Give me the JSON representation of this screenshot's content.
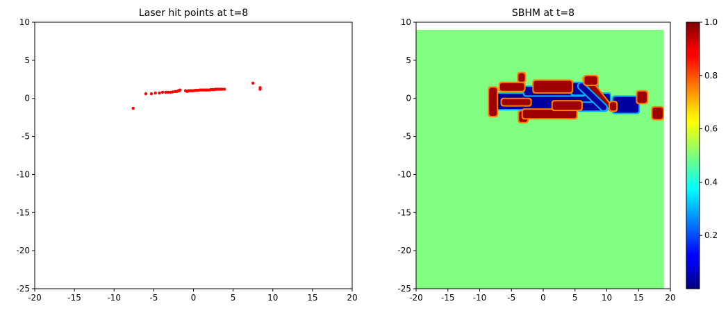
{
  "chart_data": [
    {
      "type": "scatter",
      "title": "Laser hit points at t=8",
      "xlabel": "",
      "ylabel": "",
      "xlim": [
        -20,
        20
      ],
      "ylim": [
        -25,
        10
      ],
      "x_ticks": [
        -20,
        -15,
        -10,
        -5,
        0,
        5,
        10,
        15,
        20
      ],
      "y_ticks": [
        -25,
        -20,
        -15,
        -10,
        -5,
        0,
        5,
        10
      ],
      "grid": false,
      "point_color": "#ff0000",
      "points": [
        [
          -7.6,
          -1.3
        ],
        [
          -6.0,
          0.6
        ],
        [
          -5.3,
          0.6
        ],
        [
          -4.8,
          0.7
        ],
        [
          -4.3,
          0.7
        ],
        [
          -3.9,
          0.8
        ],
        [
          -3.5,
          0.8
        ],
        [
          -3.2,
          0.8
        ],
        [
          -2.9,
          0.8
        ],
        [
          -2.6,
          0.85
        ],
        [
          -2.3,
          0.9
        ],
        [
          -2.1,
          0.9
        ],
        [
          -1.9,
          1.0
        ],
        [
          -1.8,
          1.0
        ],
        [
          -1.7,
          1.1
        ],
        [
          -1.0,
          1.0
        ],
        [
          -0.8,
          0.9
        ],
        [
          -0.6,
          1.0
        ],
        [
          -0.4,
          1.0
        ],
        [
          -0.2,
          1.0
        ],
        [
          0.0,
          1.0
        ],
        [
          0.2,
          1.05
        ],
        [
          0.4,
          1.05
        ],
        [
          0.6,
          1.05
        ],
        [
          0.8,
          1.1
        ],
        [
          1.0,
          1.1
        ],
        [
          1.2,
          1.1
        ],
        [
          1.4,
          1.1
        ],
        [
          1.6,
          1.1
        ],
        [
          1.8,
          1.1
        ],
        [
          2.0,
          1.1
        ],
        [
          2.2,
          1.15
        ],
        [
          2.4,
          1.15
        ],
        [
          2.6,
          1.15
        ],
        [
          2.8,
          1.2
        ],
        [
          3.0,
          1.2
        ],
        [
          3.2,
          1.2
        ],
        [
          3.4,
          1.2
        ],
        [
          3.6,
          1.2
        ],
        [
          3.9,
          1.2
        ],
        [
          7.5,
          2.0
        ],
        [
          8.4,
          1.4
        ],
        [
          8.4,
          1.2
        ]
      ]
    },
    {
      "type": "heatmap",
      "title": "SBHM at t=8",
      "xlabel": "",
      "ylabel": "",
      "xlim": [
        -20,
        20
      ],
      "ylim": [
        -25,
        10
      ],
      "x_ticks": [
        -20,
        -15,
        -10,
        -5,
        0,
        5,
        10,
        15,
        20
      ],
      "y_ticks": [
        -25,
        -20,
        -15,
        -10,
        -5,
        0,
        5,
        10
      ],
      "field_extent": {
        "x": [
          -20,
          19
        ],
        "y": [
          -25,
          9
        ]
      },
      "background_value": 0.5,
      "colormap": "jet",
      "colorbar": {
        "min": 0,
        "max": 1.0,
        "ticks": [
          0.2,
          0.4,
          0.6,
          0.8,
          1.0
        ],
        "tick_labels": [
          "0.2",
          "0.4",
          "0.6",
          "0.8",
          "1.0"
        ]
      },
      "regions": [
        {
          "value": 0.03,
          "x": [
            -8,
            10.5
          ],
          "y": [
            -1.4,
            0.6
          ]
        },
        {
          "value": 0.03,
          "x": [
            -3,
            6.5
          ],
          "y": [
            0.4,
            1.5
          ]
        },
        {
          "value": 0.03,
          "x": [
            4.5,
            8.5
          ],
          "y": [
            0.5,
            2.0
          ]
        },
        {
          "value": 0.03,
          "x": [
            5.5,
            10
          ],
          "y": [
            -1.6,
            -0.6
          ]
        },
        {
          "value": 0.03,
          "x": [
            11,
            15
          ],
          "y": [
            -1.9,
            0.2
          ]
        },
        {
          "value": 0.97,
          "x": [
            -8.5,
            -7.3
          ],
          "y": [
            -2.3,
            1.4
          ]
        },
        {
          "value": 0.97,
          "x": [
            -6.8,
            -3.0
          ],
          "y": [
            1.0,
            2.0
          ]
        },
        {
          "value": 0.97,
          "x": [
            -6.5,
            -2.0
          ],
          "y": [
            -0.9,
            -0.1
          ]
        },
        {
          "value": 0.97,
          "x": [
            -3.8,
            -2.5
          ],
          "y": [
            -3.1,
            -1.7
          ]
        },
        {
          "value": 0.97,
          "x": [
            -3.2,
            5.2
          ],
          "y": [
            -2.6,
            -1.5
          ]
        },
        {
          "value": 0.97,
          "x": [
            -1.5,
            4.5
          ],
          "y": [
            0.8,
            2.3
          ]
        },
        {
          "value": 0.97,
          "x": [
            1.5,
            6.0
          ],
          "y": [
            -1.5,
            -0.4
          ]
        },
        {
          "value": 0.97,
          "x": [
            6.5,
            8.5
          ],
          "y": [
            1.8,
            2.9
          ]
        },
        {
          "value": 0.97,
          "x": [
            10.5,
            11.5
          ],
          "y": [
            -1.6,
            -0.5
          ]
        },
        {
          "value": 0.97,
          "x": [
            14.8,
            16.3
          ],
          "y": [
            -0.6,
            0.9
          ]
        },
        {
          "value": 0.97,
          "x": [
            17.2,
            18.8
          ],
          "y": [
            -2.7,
            -1.2
          ]
        },
        {
          "value": 0.97,
          "x": [
            -3.9,
            -2.9
          ],
          "y": [
            2.2,
            3.3
          ]
        }
      ],
      "diagonals": [
        {
          "value": 0.97,
          "from": [
            6.8,
            2.5
          ],
          "to": [
            10.0,
            -0.9
          ],
          "width": 0.9
        },
        {
          "value": 0.03,
          "from": [
            6.0,
            1.6
          ],
          "to": [
            9.5,
            -1.2
          ],
          "width": 0.9
        }
      ]
    }
  ]
}
